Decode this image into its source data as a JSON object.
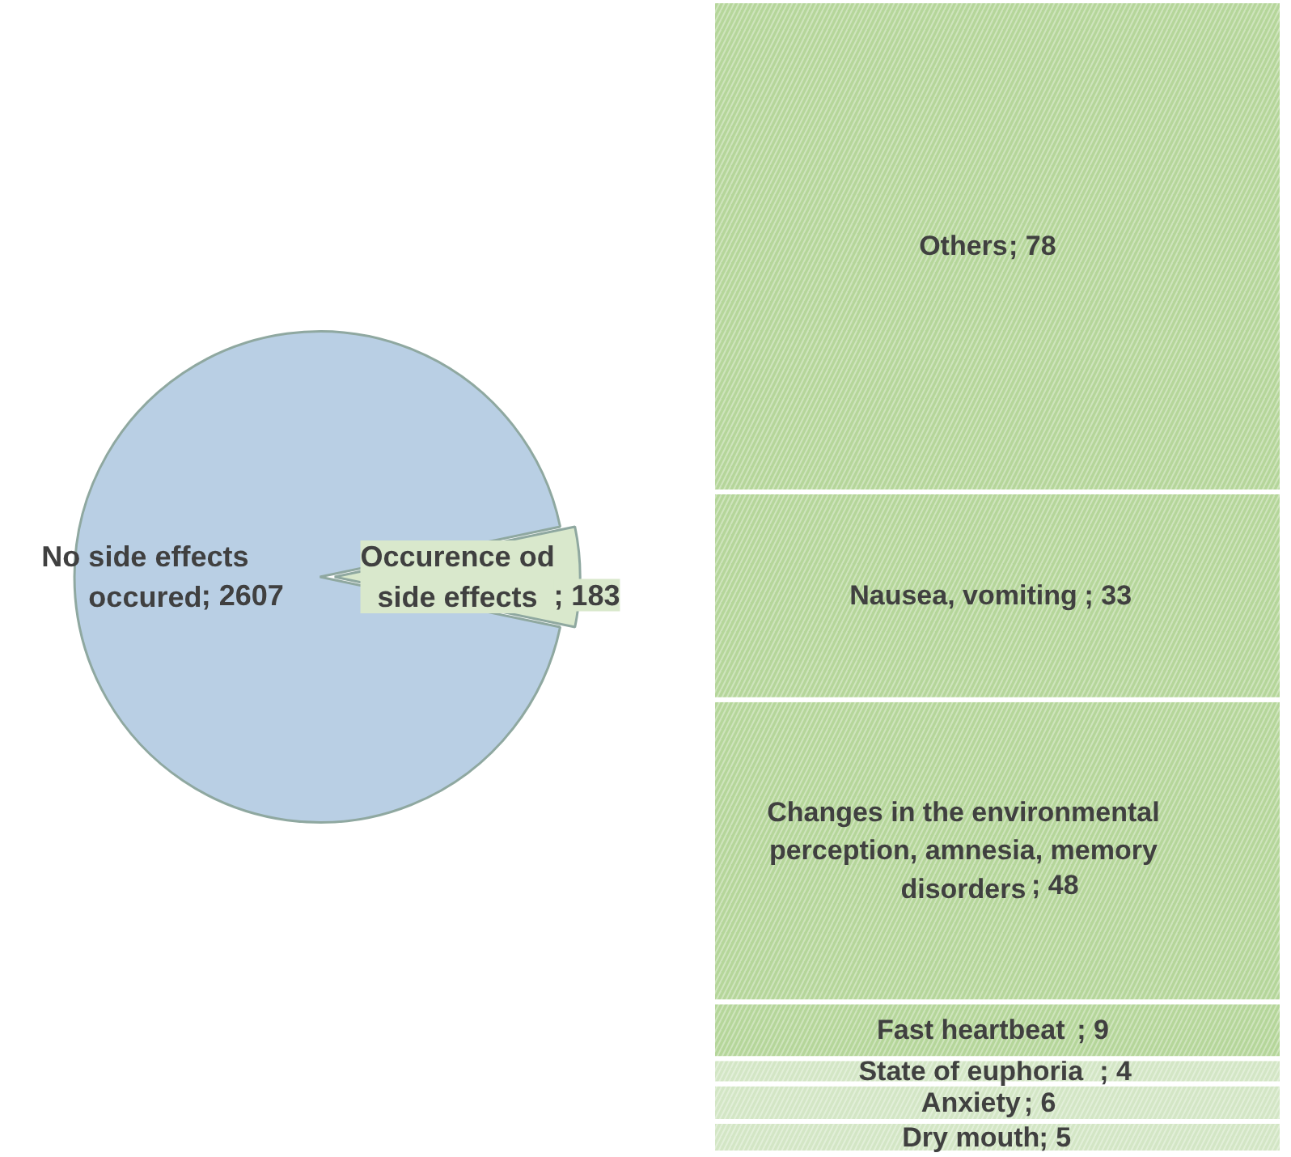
{
  "chart_data": [
    {
      "type": "pie",
      "categories": [
        "No side effects occured",
        "Occurence od side effects"
      ],
      "values": [
        2607,
        183
      ],
      "value_labels": [
        "; 2607",
        "; 183"
      ],
      "colors": [
        "#b9cfe4",
        "#d9e8cc"
      ]
    },
    {
      "type": "bar",
      "stacked": true,
      "categories": [
        null
      ],
      "series": [
        {
          "name": "Dry mouth",
          "color": "#d3e6c5",
          "values": [
            5
          ],
          "value_labels": [
            "; 5"
          ]
        },
        {
          "name": "Anxiety",
          "color": "#d3e6c5",
          "values": [
            6
          ],
          "value_labels": [
            "; 6"
          ]
        },
        {
          "name": "State of euphoria",
          "color": "#d3e6c5",
          "values": [
            4
          ],
          "value_labels": [
            "; 4"
          ]
        },
        {
          "name": "Fast heartbeat",
          "color": "#b5d69a",
          "values": [
            9
          ],
          "value_labels": [
            "; 9"
          ]
        },
        {
          "name": "Changes in the environmental perception, amnesia, memory disorders",
          "color": "#b5d69a",
          "values": [
            48
          ],
          "value_labels": [
            "; 48"
          ]
        },
        {
          "name": "Nausea, vomiting",
          "color": "#b5d69a",
          "values": [
            33
          ],
          "value_labels": [
            "; 33"
          ]
        },
        {
          "name": "Others",
          "color": "#b5d69a",
          "values": [
            78
          ],
          "value_labels": [
            "; 78"
          ]
        }
      ]
    }
  ]
}
